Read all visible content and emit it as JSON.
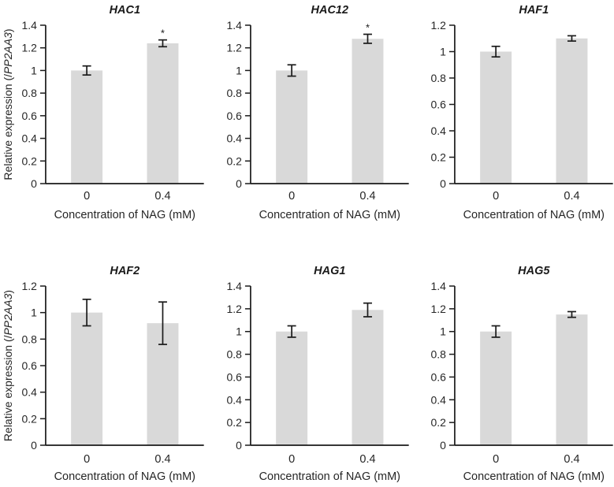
{
  "figure": {
    "bar_color": "#d9d9d9",
    "axis_color": "#1a1a1a",
    "error_color": "#1a1a1a",
    "text_color": "#262626",
    "title_color": "#1a1a1a",
    "x_axis_title": "Concentration of NAG (mM)",
    "y_axis_title": {
      "prefix": "Relative expression (/",
      "gene": "PP2AA3",
      "suffix": ")"
    }
  },
  "chart_data": [
    {
      "type": "bar",
      "title": "HAC1",
      "categories": [
        "0",
        "0.4"
      ],
      "values": [
        1.0,
        1.24
      ],
      "errors": [
        0.04,
        0.03
      ],
      "significance": [
        "",
        "*"
      ],
      "ylim": [
        0,
        1.4
      ],
      "ytick_step": 0.2,
      "ytick_labels": [
        "0",
        "0.2",
        "0.4",
        "0.6",
        "0.8",
        "1",
        "1.2",
        "1.4"
      ],
      "xlabel": "Concentration of NAG (mM)",
      "ylabel": "Relative expression (/PP2AA3)",
      "show_ylabel": true,
      "grid": false,
      "legend": false
    },
    {
      "type": "bar",
      "title": "HAC12",
      "categories": [
        "0",
        "0.4"
      ],
      "values": [
        1.0,
        1.28
      ],
      "errors": [
        0.05,
        0.04
      ],
      "significance": [
        "",
        "*"
      ],
      "ylim": [
        0,
        1.4
      ],
      "ytick_step": 0.2,
      "ytick_labels": [
        "0",
        "0.2",
        "0.4",
        "0.6",
        "0.8",
        "1",
        "1.2",
        "1.4"
      ],
      "xlabel": "Concentration of NAG (mM)",
      "ylabel": "",
      "show_ylabel": false,
      "grid": false,
      "legend": false
    },
    {
      "type": "bar",
      "title": "HAF1",
      "categories": [
        "0",
        "0.4"
      ],
      "values": [
        1.0,
        1.1
      ],
      "errors": [
        0.04,
        0.02
      ],
      "significance": [
        "",
        ""
      ],
      "ylim": [
        0,
        1.2
      ],
      "ytick_step": 0.2,
      "ytick_labels": [
        "0",
        "0.2",
        "0.4",
        "0.6",
        "0.8",
        "1",
        "1.2"
      ],
      "xlabel": "Concentration of NAG (mM)",
      "ylabel": "",
      "show_ylabel": false,
      "grid": false,
      "legend": false
    },
    {
      "type": "bar",
      "title": "HAF2",
      "categories": [
        "0",
        "0.4"
      ],
      "values": [
        1.0,
        0.92
      ],
      "errors": [
        0.1,
        0.16
      ],
      "significance": [
        "",
        ""
      ],
      "ylim": [
        0,
        1.2
      ],
      "ytick_step": 0.2,
      "ytick_labels": [
        "0",
        "0.2",
        "0.4",
        "0.6",
        "0.8",
        "1",
        "1.2"
      ],
      "xlabel": "Concentration of NAG (mM)",
      "ylabel": "Relative expression (/PP2AA3)",
      "show_ylabel": true,
      "grid": false,
      "legend": false
    },
    {
      "type": "bar",
      "title": "HAG1",
      "categories": [
        "0",
        "0.4"
      ],
      "values": [
        1.0,
        1.19
      ],
      "errors": [
        0.05,
        0.06
      ],
      "significance": [
        "",
        ""
      ],
      "ylim": [
        0,
        1.4
      ],
      "ytick_step": 0.2,
      "ytick_labels": [
        "0",
        "0.2",
        "0.4",
        "0.6",
        "0.8",
        "1",
        "1.2",
        "1.4"
      ],
      "xlabel": "Concentration of NAG (mM)",
      "ylabel": "",
      "show_ylabel": false,
      "grid": false,
      "legend": false
    },
    {
      "type": "bar",
      "title": "HAG5",
      "categories": [
        "0",
        "0.4"
      ],
      "values": [
        1.0,
        1.15
      ],
      "errors": [
        0.05,
        0.025
      ],
      "significance": [
        "",
        ""
      ],
      "ylim": [
        0,
        1.4
      ],
      "ytick_step": 0.2,
      "ytick_labels": [
        "0",
        "0.2",
        "0.4",
        "0.6",
        "0.8",
        "1",
        "1.2",
        "1.4"
      ],
      "xlabel": "Concentration of NAG (mM)",
      "ylabel": "",
      "show_ylabel": false,
      "grid": false,
      "legend": false
    }
  ]
}
